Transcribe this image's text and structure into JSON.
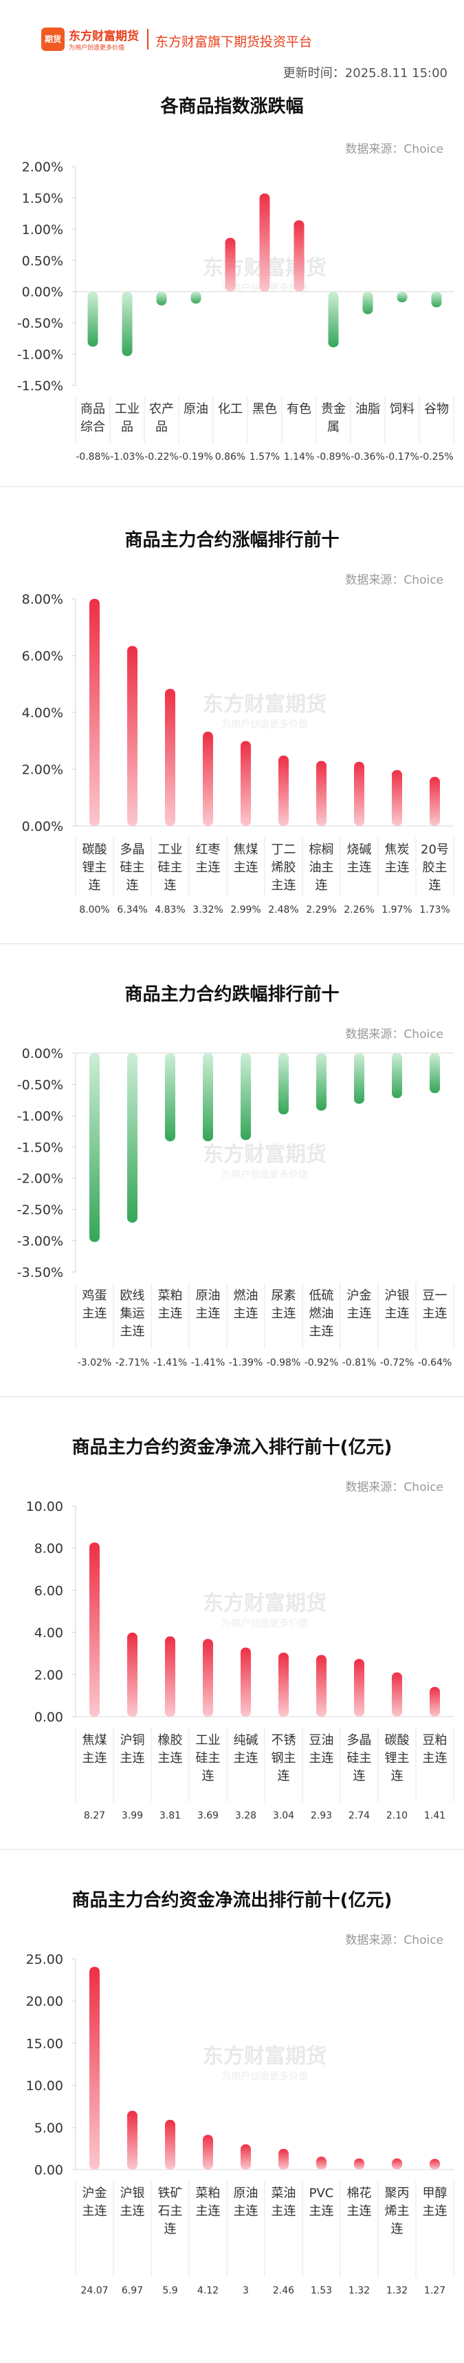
{
  "header": {
    "logo_icon_text": "期货",
    "logo_cn": "东方财富期货",
    "logo_sub": "为用户创造更多价值",
    "slogan": "东方财富旗下期货投资平台",
    "update_time": "更新时间：2025.8.11 15:00"
  },
  "watermark": {
    "line1": "东方财富期货",
    "line2": "为用户创造更多价值"
  },
  "colors": {
    "positive": "#ee3a4f",
    "negative": "#3aa55c",
    "accent": "#e8401c"
  },
  "chart_data": [
    {
      "type": "bar",
      "title": "各商品指数涨跌幅",
      "source": "数据来源：Choice",
      "categories": [
        [
          "商品",
          "综合"
        ],
        [
          "工业",
          "品"
        ],
        [
          "农产",
          "品"
        ],
        [
          "原油"
        ],
        [
          "化工"
        ],
        [
          "黑色"
        ],
        [
          "有色"
        ],
        [
          "贵金",
          "属"
        ],
        [
          "油脂"
        ],
        [
          "饲料"
        ],
        [
          "谷物"
        ]
      ],
      "values": [
        -0.88,
        -1.03,
        -0.22,
        -0.19,
        0.86,
        1.57,
        1.14,
        -0.89,
        -0.36,
        -0.17,
        -0.25
      ],
      "value_labels": [
        "-0.88%",
        "-1.03%",
        "-0.22%",
        "-0.19%",
        "0.86%",
        "1.57%",
        "1.14%",
        "-0.89%",
        "-0.36%",
        "-0.17%",
        "-0.25%"
      ],
      "yticks": [
        "2.00%",
        "1.50%",
        "1.00%",
        "0.50%",
        "0.00%",
        "-0.50%",
        "-1.00%",
        "-1.50%"
      ],
      "ylim": [
        -1.5,
        2.0
      ],
      "grid": false
    },
    {
      "type": "bar",
      "title": "商品主力合约涨幅排行前十",
      "source": "数据来源：Choice",
      "categories": [
        [
          "碳酸",
          "锂主",
          "连"
        ],
        [
          "多晶",
          "硅主",
          "连"
        ],
        [
          "工业",
          "硅主",
          "连"
        ],
        [
          "红枣",
          "主连"
        ],
        [
          "焦煤",
          "主连"
        ],
        [
          "丁二",
          "烯胶",
          "主连"
        ],
        [
          "棕榈",
          "油主",
          "连"
        ],
        [
          "烧碱",
          "主连"
        ],
        [
          "焦炭",
          "主连"
        ],
        [
          "20号",
          "胶主",
          "连"
        ]
      ],
      "values": [
        8.0,
        6.34,
        4.83,
        3.32,
        2.99,
        2.48,
        2.29,
        2.26,
        1.97,
        1.73
      ],
      "value_labels": [
        "8.00%",
        "6.34%",
        "4.83%",
        "3.32%",
        "2.99%",
        "2.48%",
        "2.29%",
        "2.26%",
        "1.97%",
        "1.73%"
      ],
      "yticks": [
        "8.00%",
        "6.00%",
        "4.00%",
        "2.00%",
        "0.00%"
      ],
      "ylim": [
        0,
        8
      ],
      "grid": false
    },
    {
      "type": "bar",
      "title": "商品主力合约跌幅排行前十",
      "source": "数据来源：Choice",
      "categories": [
        [
          "鸡蛋",
          "主连"
        ],
        [
          "欧线",
          "集运",
          "主连"
        ],
        [
          "菜粕",
          "主连"
        ],
        [
          "原油",
          "主连"
        ],
        [
          "燃油",
          "主连"
        ],
        [
          "尿素",
          "主连"
        ],
        [
          "低硫",
          "燃油",
          "主连"
        ],
        [
          "沪金",
          "主连"
        ],
        [
          "沪银",
          "主连"
        ],
        [
          "豆一",
          "主连"
        ]
      ],
      "values": [
        -3.02,
        -2.71,
        -1.41,
        -1.41,
        -1.39,
        -0.98,
        -0.92,
        -0.81,
        -0.72,
        -0.64
      ],
      "value_labels": [
        "-3.02%",
        "-2.71%",
        "-1.41%",
        "-1.41%",
        "-1.39%",
        "-0.98%",
        "-0.92%",
        "-0.81%",
        "-0.72%",
        "-0.64%"
      ],
      "yticks": [
        "0.00%",
        "-0.50%",
        "-1.00%",
        "-1.50%",
        "-2.00%",
        "-2.50%",
        "-3.00%",
        "-3.50%"
      ],
      "ylim": [
        -3.5,
        0
      ],
      "grid": false
    },
    {
      "type": "bar",
      "title": "商品主力合约资金净流入排行前十(亿元)",
      "source": "数据来源：Choice",
      "categories": [
        [
          "焦煤",
          "主连"
        ],
        [
          "沪铜",
          "主连"
        ],
        [
          "橡胶",
          "主连"
        ],
        [
          "工业",
          "硅主",
          "连"
        ],
        [
          "纯碱",
          "主连"
        ],
        [
          "不锈",
          "钢主",
          "连"
        ],
        [
          "豆油",
          "主连"
        ],
        [
          "多晶",
          "硅主",
          "连"
        ],
        [
          "碳酸",
          "锂主",
          "连"
        ],
        [
          "豆粕",
          "主连"
        ]
      ],
      "values": [
        8.27,
        3.99,
        3.81,
        3.69,
        3.28,
        3.04,
        2.93,
        2.74,
        2.1,
        1.41
      ],
      "value_labels": [
        "8.27",
        "3.99",
        "3.81",
        "3.69",
        "3.28",
        "3.04",
        "2.93",
        "2.74",
        "2.10",
        "1.41"
      ],
      "yticks": [
        "10.00",
        "8.00",
        "6.00",
        "4.00",
        "2.00",
        "0.00"
      ],
      "ylim": [
        0,
        10
      ],
      "grid": false
    },
    {
      "type": "bar",
      "title": "商品主力合约资金净流出排行前十(亿元)",
      "source": "数据来源：Choice",
      "categories": [
        [
          "沪金",
          "主连"
        ],
        [
          "沪银",
          "主连"
        ],
        [
          "铁矿",
          "石主",
          "连"
        ],
        [
          "菜粕",
          "主连"
        ],
        [
          "原油",
          "主连"
        ],
        [
          "菜油",
          "主连"
        ],
        [
          "PVC",
          "主连"
        ],
        [
          "棉花",
          "主连"
        ],
        [
          "聚丙",
          "烯主",
          "连"
        ],
        [
          "甲醇",
          "主连"
        ]
      ],
      "values": [
        24.07,
        6.97,
        5.9,
        4.12,
        3,
        2.46,
        1.53,
        1.32,
        1.32,
        1.27
      ],
      "value_labels": [
        "24.07",
        "6.97",
        "5.9",
        "4.12",
        "3",
        "2.46",
        "1.53",
        "1.32",
        "1.32",
        "1.27"
      ],
      "yticks": [
        "25.00",
        "20.00",
        "15.00",
        "10.00",
        "5.00",
        "0.00"
      ],
      "ylim": [
        0,
        25
      ],
      "grid": false
    }
  ]
}
